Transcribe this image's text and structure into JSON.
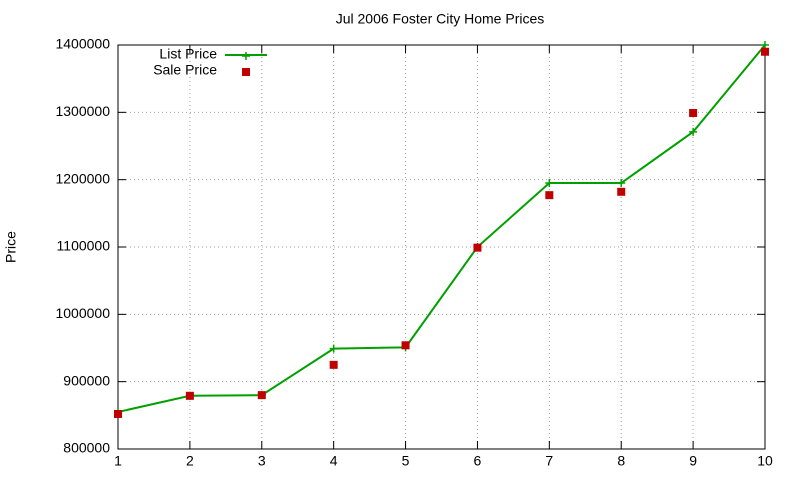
{
  "chart_data": {
    "type": "line",
    "title": "Jul 2006 Foster City Home Prices",
    "ylabel": "Price",
    "x": [
      1,
      2,
      3,
      4,
      5,
      6,
      7,
      8,
      9,
      10
    ],
    "series": [
      {
        "name": "List Price",
        "color": "#00a000",
        "style": "linespoints",
        "marker": "plus",
        "values": [
          855000,
          879000,
          880000,
          949000,
          951000,
          1100000,
          1195000,
          1195000,
          1271000,
          1400000
        ]
      },
      {
        "name": "Sale Price",
        "color": "#c00000",
        "style": "points",
        "marker": "square",
        "values": [
          852000,
          879000,
          880000,
          925000,
          954000,
          1099000,
          1177000,
          1182000,
          1299000,
          1390000
        ]
      }
    ],
    "xlim": [
      1,
      10
    ],
    "xticks": [
      1,
      2,
      3,
      4,
      5,
      6,
      7,
      8,
      9,
      10
    ],
    "ylim": [
      800000,
      1400000
    ],
    "yticks": [
      800000,
      900000,
      1000000,
      1100000,
      1200000,
      1300000,
      1400000
    ],
    "grid": true,
    "legend": "top-left"
  }
}
